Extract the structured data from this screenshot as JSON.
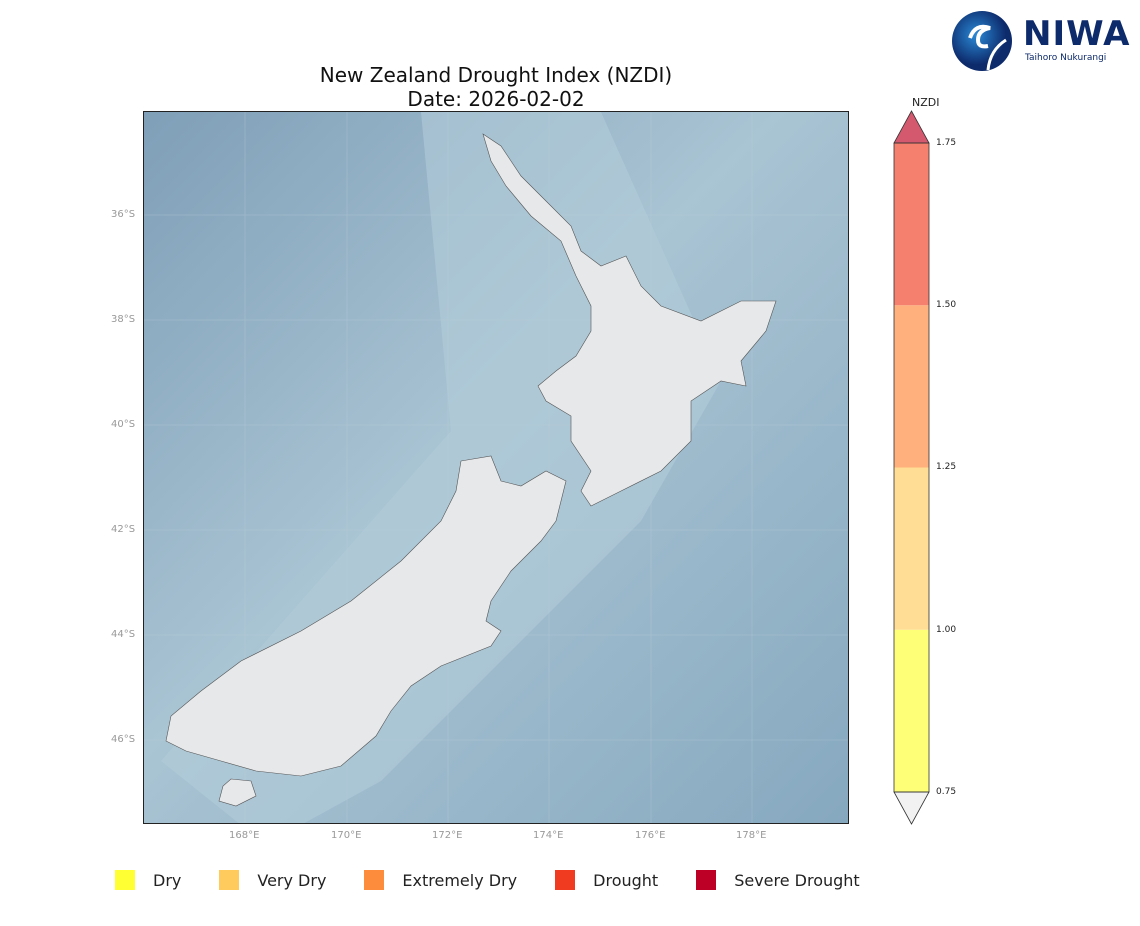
{
  "header": {
    "title": "New Zealand Drought Index (NZDI)",
    "date": "Date: 2026-02-02"
  },
  "logo": {
    "name": "NIWA",
    "subtitle": "Taihoro Nukurangi",
    "icon": "niwa-swirl-logo"
  },
  "map": {
    "lat_ticks": [
      "36°S",
      "38°S",
      "40°S",
      "42°S",
      "44°S",
      "46°S"
    ],
    "lon_ticks": [
      "168°E",
      "170°E",
      "172°E",
      "174°E",
      "176°E",
      "178°E"
    ],
    "ocean_color": "#8fb0c6",
    "land_color": "#e6e8ea"
  },
  "colorbar": {
    "label": "NZDI",
    "ticks": [
      "1.75",
      "1.50",
      "1.25",
      "1.00",
      "0.75"
    ],
    "bins": [
      {
        "from": 0.75,
        "to": 1.0,
        "color": "#ffff77"
      },
      {
        "from": 1.0,
        "to": 1.25,
        "color": "#ffdd94"
      },
      {
        "from": 1.25,
        "to": 1.5,
        "color": "#ffb07c"
      },
      {
        "from": 1.5,
        "to": 1.75,
        "color": "#f5806d"
      }
    ],
    "over_color": "#d4596f",
    "under_color": "#f2f2f2"
  },
  "legend": [
    {
      "label": "Dry",
      "color": "#ffff33"
    },
    {
      "label": "Very Dry",
      "color": "#fecb5c"
    },
    {
      "label": "Extremely Dry",
      "color": "#fd8d3c"
    },
    {
      "label": "Drought",
      "color": "#f03b20"
    },
    {
      "label": "Severe Drought",
      "color": "#bd0026"
    }
  ]
}
